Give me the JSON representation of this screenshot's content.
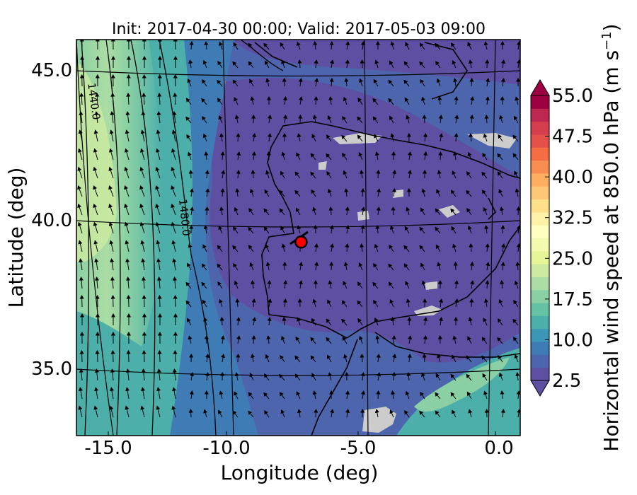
{
  "map": {
    "title": "Init: 2017-04-30 00:00; Valid: 2017-05-03 09:00",
    "xlabel": "Longitude (deg)",
    "ylabel": "Latitude (deg)",
    "x_ticks": [
      "-15.0",
      "-10.0",
      "-5.0",
      "0.0"
    ],
    "y_ticks": [
      "45.0",
      "40.0",
      "35.0"
    ],
    "lon_range": [
      -15.9,
      0.3
    ],
    "lat_range": [
      32.8,
      46.1
    ],
    "contour_labels": [
      "1440.0",
      "1480.0"
    ],
    "marker": {
      "lon": -7.7,
      "lat": 39.3,
      "color": "#ff0000"
    }
  },
  "colorbar": {
    "label": "Horizontal wind speed at 850.0 hPa (m s",
    "label_exponent": "−1",
    "label_suffix": ")",
    "ticks": [
      "2.5",
      "10.0",
      "17.5",
      "25.0",
      "32.5",
      "40.0",
      "47.5",
      "55.0"
    ],
    "range": [
      2.5,
      55.0
    ],
    "colors": [
      "#5e4fa2",
      "#4d65ac",
      "#3f7cb6",
      "#3e96b7",
      "#4cafa9",
      "#66c2a5",
      "#8ad0a4",
      "#abdda4",
      "#cdeba0",
      "#e6f598",
      "#f4faae",
      "#ffffbf",
      "#fff1a8",
      "#fee08b",
      "#fdc776",
      "#fdae61",
      "#f88d52",
      "#f46d43",
      "#e5514a",
      "#d53e4f",
      "#bd2750",
      "#9e0142"
    ]
  },
  "colors": {
    "missing": "#cccccc",
    "ocean_jet": "#abdda4",
    "background_flow": "#4d65ac"
  }
}
